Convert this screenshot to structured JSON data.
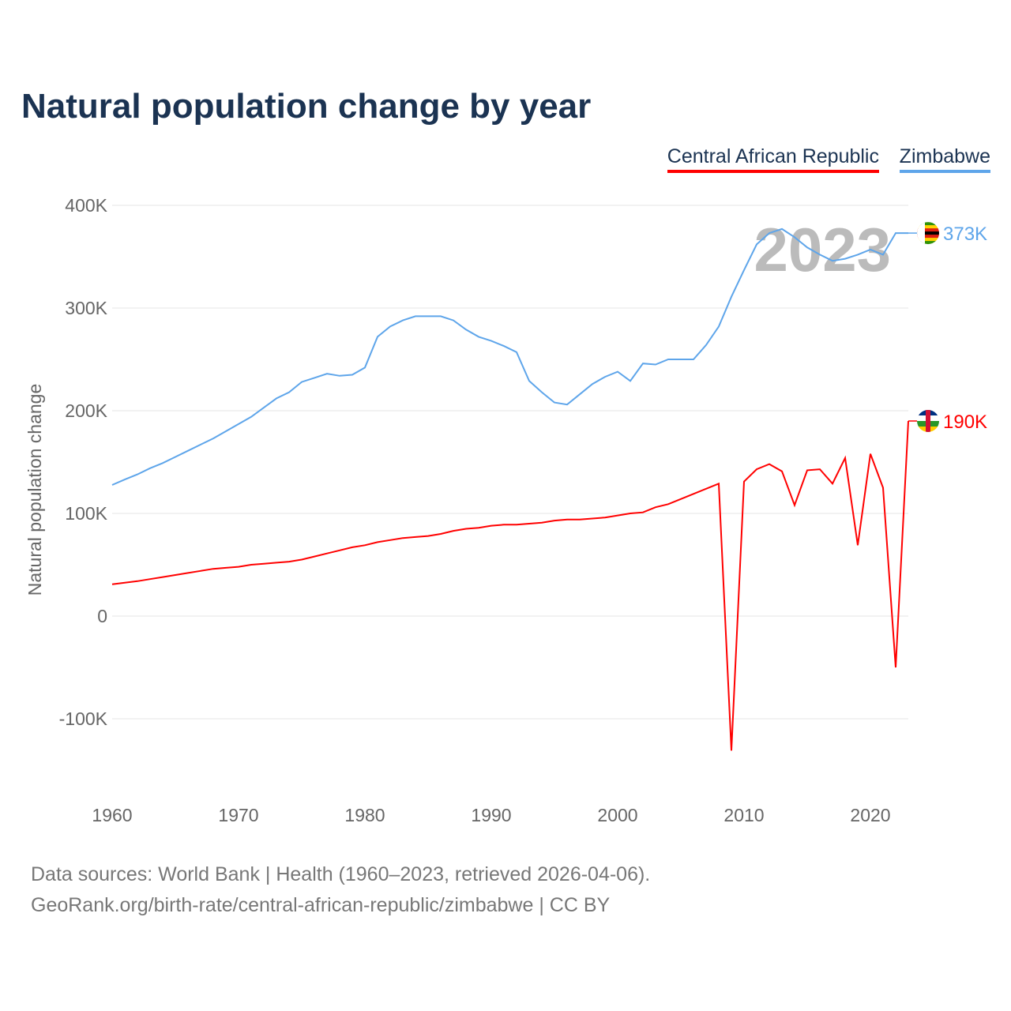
{
  "chart_data": {
    "type": "line",
    "title": "Natural population change by year",
    "xlabel": "",
    "ylabel": "Natural population change",
    "xlim": [
      1960,
      2023
    ],
    "ylim": [
      -150000,
      400000
    ],
    "yticks": [
      {
        "v": 400000,
        "l": "400K"
      },
      {
        "v": 300000,
        "l": "300K"
      },
      {
        "v": 200000,
        "l": "200K"
      },
      {
        "v": 100000,
        "l": "100K"
      },
      {
        "v": 0,
        "l": "0"
      },
      {
        "v": -100000,
        "l": "-100K"
      }
    ],
    "xticks": [
      1960,
      1970,
      1980,
      1990,
      2000,
      2010,
      2020
    ],
    "grid": true,
    "legend_position": "top-right",
    "year_overlay": "2023",
    "x_start": 1960,
    "series": [
      {
        "name": "Central African Republic",
        "color": "#ff0000",
        "end_label": "190K",
        "flag": "central-african-republic",
        "values": [
          31000,
          32500,
          34000,
          36000,
          38000,
          40000,
          42000,
          44000,
          46000,
          47000,
          48000,
          50000,
          51000,
          52000,
          53000,
          55000,
          58000,
          61000,
          64000,
          67000,
          69000,
          72000,
          74000,
          76000,
          77000,
          78000,
          80000,
          83000,
          85000,
          86000,
          88000,
          89000,
          89000,
          90000,
          91000,
          93000,
          94000,
          94000,
          95000,
          96000,
          98000,
          100000,
          101000,
          106000,
          109000,
          114000,
          119000,
          124000,
          129000,
          -131000,
          131000,
          143000,
          148000,
          141000,
          108000,
          142000,
          143000,
          129000,
          154000,
          69000,
          158000,
          125000,
          -50000,
          190000
        ]
      },
      {
        "name": "Zimbabwe",
        "color": "#5ea5ea",
        "end_label": "373K",
        "flag": "zimbabwe",
        "values": [
          127700,
          133000,
          138000,
          144000,
          149000,
          155000,
          161000,
          167000,
          173000,
          180000,
          187000,
          194000,
          203000,
          212000,
          218000,
          228000,
          232000,
          236000,
          234000,
          235000,
          242000,
          272000,
          282000,
          288000,
          292000,
          292000,
          292000,
          288000,
          279000,
          272000,
          268000,
          263000,
          257000,
          229000,
          218000,
          208000,
          206000,
          216000,
          226000,
          233000,
          238000,
          229000,
          246000,
          245000,
          250000,
          250000,
          250000,
          264000,
          282000,
          311000,
          337000,
          362000,
          373000,
          377000,
          369000,
          359000,
          352000,
          346000,
          348000,
          352000,
          357000,
          352000,
          373000,
          373000
        ]
      }
    ]
  },
  "footer": {
    "line1": "Data sources: World Bank | Health (1960–2023, retrieved 2026-04-06).",
    "line2": "GeoRank.org/birth-rate/central-african-republic/zimbabwe | CC BY"
  }
}
